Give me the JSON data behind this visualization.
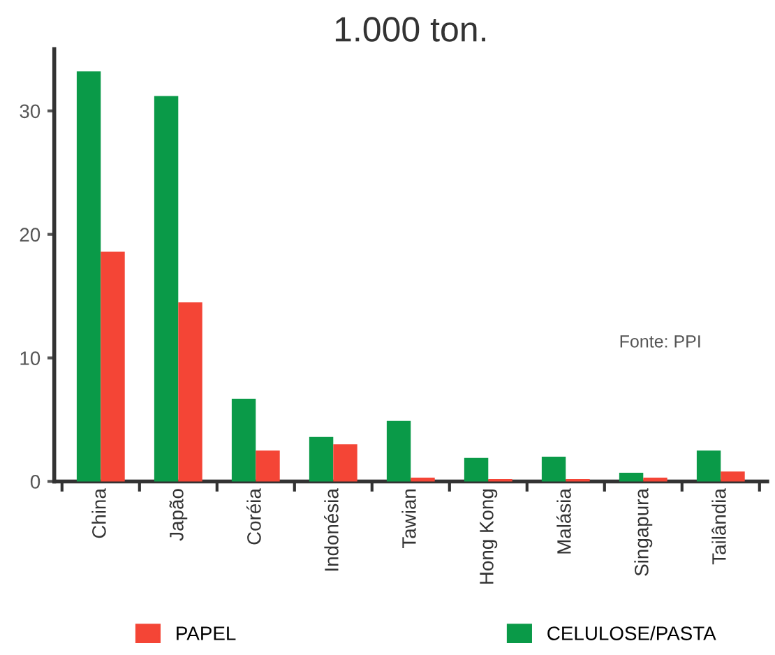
{
  "chart_data": {
    "type": "bar",
    "title": "1.000 ton.",
    "categories": [
      "China",
      "Japão",
      "Coréia",
      "Indonésia",
      "Tawian",
      "Hong Kong",
      "Malásia",
      "Singapura",
      "Tailândia"
    ],
    "series": [
      {
        "name": "CELULOSE/PASTA",
        "color": "#0a9a48",
        "values": [
          33.2,
          31.2,
          6.7,
          3.6,
          4.9,
          1.9,
          2.0,
          0.7,
          2.5
        ]
      },
      {
        "name": "PAPEL",
        "color": "#f44536",
        "values": [
          18.6,
          14.5,
          2.5,
          3.0,
          0.3,
          0.2,
          0.2,
          0.3,
          0.8
        ]
      }
    ],
    "ylim": [
      0,
      35
    ],
    "yticks": [
      0,
      10,
      20,
      30
    ],
    "grid": false,
    "legend": "bottom",
    "annotations": [
      "Fonte: PPI"
    ]
  }
}
